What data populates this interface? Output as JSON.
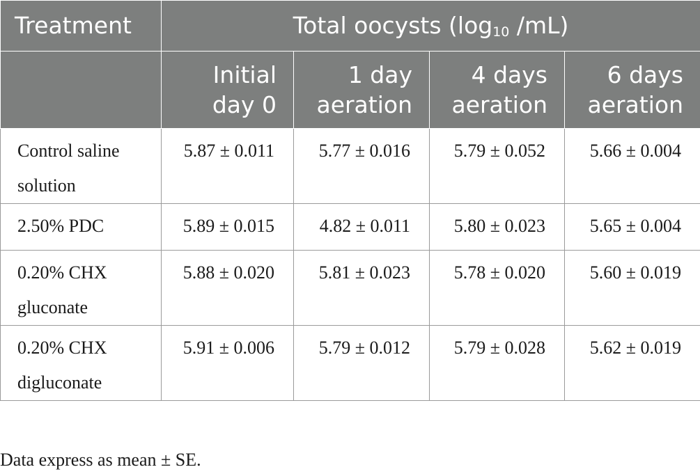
{
  "table": {
    "header": {
      "treatment_label": "Treatment",
      "group_label_prefix": "Total oocysts (log",
      "group_label_sub": "10",
      "group_label_suffix": " /mL)",
      "columns": [
        {
          "line1": "Initial",
          "line2": "day 0"
        },
        {
          "line1": "1 day",
          "line2": "aeration"
        },
        {
          "line1": "4 days",
          "line2": "aeration"
        },
        {
          "line1": "6 days",
          "line2": "aeration"
        }
      ]
    },
    "rows": [
      {
        "treatment": "Control saline solution",
        "values": [
          "5.87 ± 0.011",
          "5.77 ± 0.016",
          "5.79 ± 0.052",
          "5.66 ± 0.004"
        ]
      },
      {
        "treatment": "2.50% PDC",
        "values": [
          "5.89 ± 0.015",
          "4.82 ± 0.011",
          "5.80 ± 0.023",
          "5.65 ± 0.004"
        ]
      },
      {
        "treatment": "0.20% CHX gluconate",
        "values": [
          "5.88 ± 0.020",
          "5.81 ± 0.023",
          "5.78 ± 0.020",
          "5.60 ± 0.019"
        ]
      },
      {
        "treatment": "0.20% CHX digluconate",
        "values": [
          "5.91 ± 0.006",
          "5.79 ± 0.012",
          "5.79 ± 0.028",
          "5.62 ± 0.019"
        ]
      }
    ]
  },
  "footnote": "Data express as mean ± SE."
}
